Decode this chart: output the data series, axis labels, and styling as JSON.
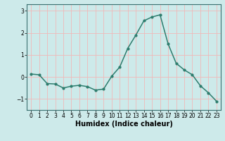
{
  "x": [
    0,
    1,
    2,
    3,
    4,
    5,
    6,
    7,
    8,
    9,
    10,
    11,
    12,
    13,
    14,
    15,
    16,
    17,
    18,
    19,
    20,
    21,
    22,
    23
  ],
  "y": [
    0.13,
    0.1,
    -0.3,
    -0.32,
    -0.5,
    -0.42,
    -0.38,
    -0.44,
    -0.6,
    -0.55,
    0.03,
    0.45,
    1.3,
    1.9,
    2.55,
    2.72,
    2.82,
    1.5,
    0.62,
    0.32,
    0.1,
    -0.4,
    -0.72,
    -1.1
  ],
  "line_color": "#2e7d6e",
  "marker": "o",
  "markersize": 2.0,
  "linewidth": 1.1,
  "xlabel": "Humidex (Indice chaleur)",
  "xlabel_fontsize": 7,
  "ylim": [
    -1.5,
    3.3
  ],
  "xlim": [
    -0.5,
    23.5
  ],
  "yticks": [
    -1,
    0,
    1,
    2,
    3
  ],
  "xticks": [
    0,
    1,
    2,
    3,
    4,
    5,
    6,
    7,
    8,
    9,
    10,
    11,
    12,
    13,
    14,
    15,
    16,
    17,
    18,
    19,
    20,
    21,
    22,
    23
  ],
  "bg_color": "#cdeaea",
  "grid_color": "#f0b8b8",
  "tick_fontsize": 5.5,
  "spine_color": "#3a7070"
}
